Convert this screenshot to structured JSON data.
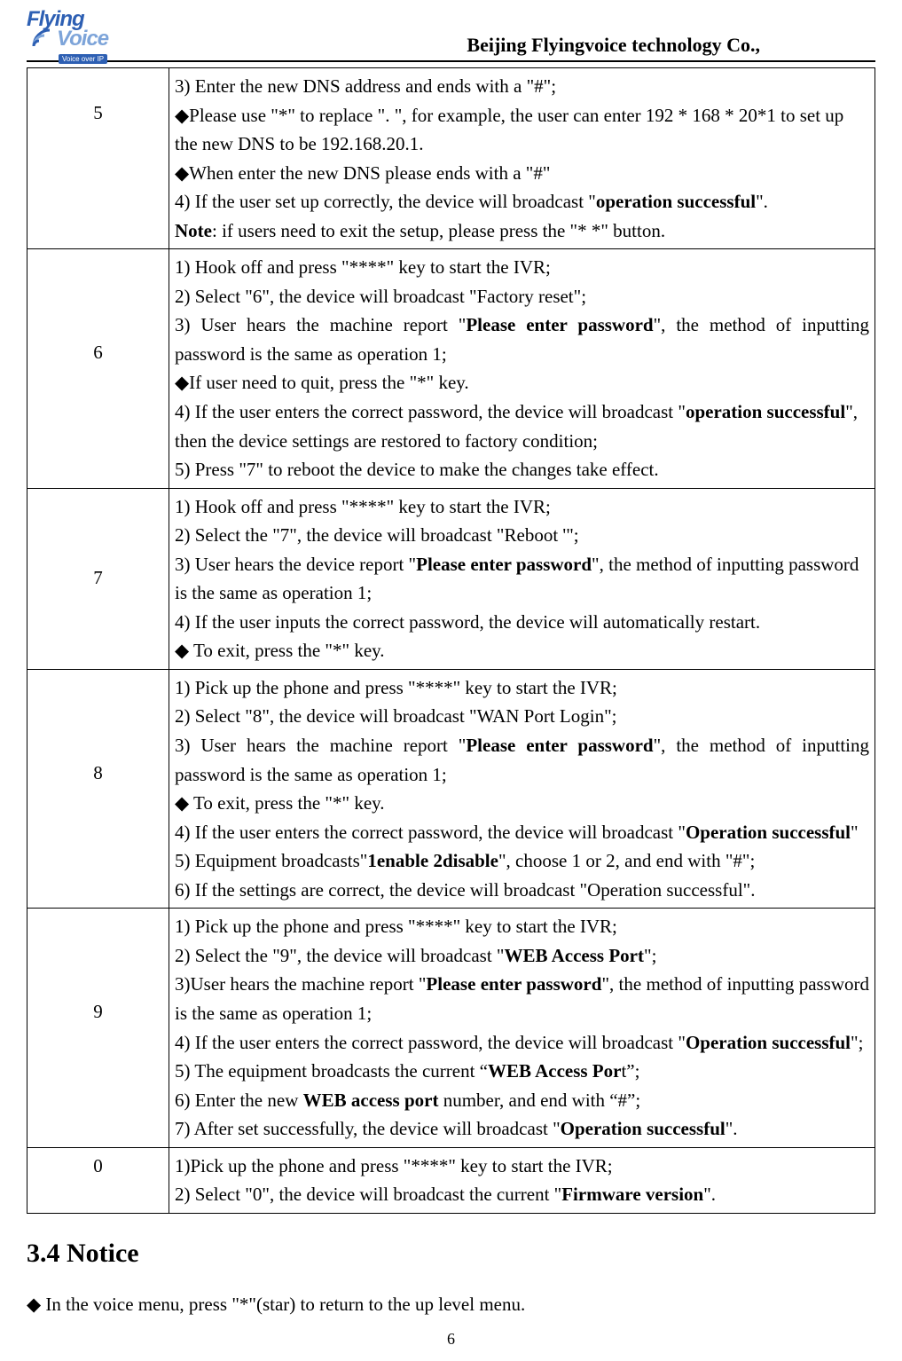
{
  "header": {
    "company": "Beijing Flyingvoice technology Co.,",
    "logo": {
      "line1": "Flying",
      "line2": "Voice",
      "sub": "Voice over IP"
    }
  },
  "table": {
    "rows": [
      {
        "num": "5",
        "lines": [
          {
            "segments": [
              {
                "t": "3) Enter the new DNS address and ends with a \"#\";"
              }
            ]
          },
          {
            "segments": [
              {
                "t": "◆Please use \"*\" to replace \". \", for example, the user can enter 192 * 168 * 20*1 to set up the new DNS to be 192.168.20.1."
              }
            ]
          },
          {
            "segments": [
              {
                "t": "◆When enter the new DNS please ends with a \"#\""
              }
            ]
          },
          {
            "segments": [
              {
                "t": "4) If the user set up correctly, the device will broadcast \""
              },
              {
                "t": "operation successful",
                "b": true
              },
              {
                "t": "\"."
              }
            ]
          },
          {
            "segments": [
              {
                "t": "Note",
                "b": true
              },
              {
                "t": ": if users need to exit the setup, please press the \"* *\" button."
              }
            ]
          }
        ]
      },
      {
        "num": "6",
        "lines": [
          {
            "segments": [
              {
                "t": "1) Hook off and press \"****\" key to start the IVR;"
              }
            ]
          },
          {
            "segments": [
              {
                "t": "2) Select \"6\", the device will broadcast \"Factory reset\";"
              }
            ]
          },
          {
            "justify": true,
            "segments": [
              {
                "t": "3) User hears the machine report \""
              },
              {
                "t": "Please enter password",
                "b": true
              },
              {
                "t": "\", the method of inputting password is the same as operation 1;"
              }
            ]
          },
          {
            "segments": [
              {
                "t": "◆If user need to quit, press the \"*\" key."
              }
            ]
          },
          {
            "segments": [
              {
                "t": "4) If the user enters the correct password, the device will broadcast \""
              },
              {
                "t": "operation successful",
                "b": true
              },
              {
                "t": "\", then the device settings are restored to factory condition;"
              }
            ]
          },
          {
            "segments": [
              {
                "t": "5) Press \"7\" to reboot the device to make the changes take effect."
              }
            ]
          }
        ]
      },
      {
        "num": "7",
        "lines": [
          {
            "segments": [
              {
                "t": "1) Hook off and press \"****\" key to start the IVR;"
              }
            ]
          },
          {
            "segments": [
              {
                "t": "2) Select the \"7\", the device will broadcast \"Reboot '\";"
              }
            ]
          },
          {
            "segments": [
              {
                "t": "3) User hears the device report \""
              },
              {
                "t": "Please enter password",
                "b": true
              },
              {
                "t": "\", the method of inputting password is the same as operation 1;"
              }
            ]
          },
          {
            "segments": [
              {
                "t": "4) If the user inputs the correct password, the device will automatically restart."
              }
            ]
          },
          {
            "segments": [
              {
                "t": "◆ To exit, press the \"*\" key."
              }
            ]
          }
        ]
      },
      {
        "num": "8",
        "lines": [
          {
            "segments": [
              {
                "t": "1) Pick up the phone and press \"****\" key to start the IVR;"
              }
            ]
          },
          {
            "segments": [
              {
                "t": "2) Select \"8\", the device will broadcast \"WAN Port Login\";"
              }
            ]
          },
          {
            "justify": true,
            "segments": [
              {
                "t": "3) User hears the machine report \""
              },
              {
                "t": "Please enter password",
                "b": true
              },
              {
                "t": "\", the method of inputting password is the same as operation 1;"
              }
            ]
          },
          {
            "segments": [
              {
                "t": "◆ To exit, press the \"*\" key."
              }
            ]
          },
          {
            "segments": [
              {
                "t": "4) If the user enters the correct password, the device will broadcast \""
              },
              {
                "t": "Operation successful",
                "b": true
              },
              {
                "t": "\""
              }
            ]
          },
          {
            "segments": [
              {
                "t": "5) Equipment broadcasts\""
              },
              {
                "t": "1enable 2disable",
                "b": true
              },
              {
                "t": "\", choose 1 or 2, and end with \"#\";"
              }
            ]
          },
          {
            "segments": [
              {
                "t": "6) If the settings are correct, the device will broadcast \"Operation successful\"."
              }
            ]
          }
        ]
      },
      {
        "num": "9",
        "lines": [
          {
            "segments": [
              {
                "t": "1) Pick up the phone and press \"****\" key to start the IVR;"
              }
            ]
          },
          {
            "segments": [
              {
                "t": "2) Select the \"9\", the device will broadcast \""
              },
              {
                "t": "WEB Access Port",
                "b": true
              },
              {
                "t": "\";"
              }
            ]
          },
          {
            "justify": true,
            "segments": [
              {
                "t": "3)User hears the machine report \""
              },
              {
                "t": "Please enter password",
                "b": true
              },
              {
                "t": "\", the method of inputting password is the same as operation 1;"
              }
            ]
          },
          {
            "justify": true,
            "segments": [
              {
                "t": "4) If the user enters the correct password, the device will broadcast \""
              },
              {
                "t": "Operation successful",
                "b": true
              },
              {
                "t": "\";"
              }
            ]
          },
          {
            "segments": [
              {
                "t": "5) The equipment broadcasts the current “"
              },
              {
                "t": "WEB Access Por",
                "b": true
              },
              {
                "t": "t”;"
              }
            ]
          },
          {
            "segments": [
              {
                "t": "6) Enter the new "
              },
              {
                "t": "WEB access port",
                "b": true
              },
              {
                "t": " number, and end with “#”;"
              }
            ]
          },
          {
            "segments": [
              {
                "t": "7) After set successfully, the device will broadcast \""
              },
              {
                "t": "Operation successful",
                "b": true
              },
              {
                "t": "\"."
              }
            ]
          }
        ]
      },
      {
        "num": "0",
        "lines": [
          {
            "segments": [
              {
                "t": "1)Pick up the phone and press \"****\" key to start the IVR;"
              }
            ]
          },
          {
            "segments": [
              {
                "t": "2) Select \"0\", the device will broadcast the current \""
              },
              {
                "t": "Firmware version",
                "b": true
              },
              {
                "t": "\"."
              }
            ]
          }
        ]
      }
    ]
  },
  "section_title": "3.4 Notice",
  "notice_line": "◆ In the voice menu, press \"*\"(star) to return to the up level menu.",
  "page_number": "6"
}
